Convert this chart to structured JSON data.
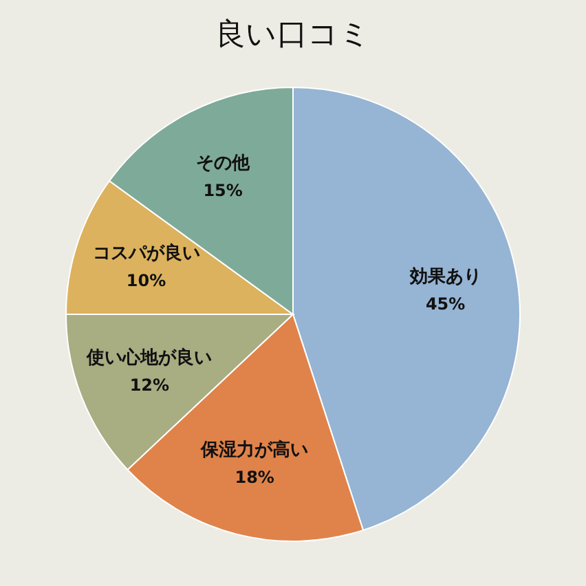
{
  "chart_data": {
    "type": "pie",
    "title": "良い口コミ",
    "categories": [
      "効果あり",
      "保湿力が高い",
      "使い心地が良い",
      "コスパが良い",
      "その他"
    ],
    "values": [
      45,
      18,
      12,
      10,
      15
    ],
    "value_labels": [
      "45%",
      "18%",
      "12%",
      "10%",
      "15%"
    ],
    "colors": [
      "#96b4d4",
      "#e0834a",
      "#a8ad82",
      "#dcb25e",
      "#7eaa9a"
    ],
    "legend": false
  }
}
